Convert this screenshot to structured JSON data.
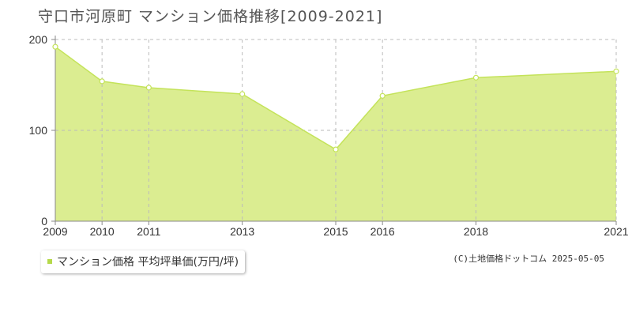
{
  "title": "守口市河原町 マンション価格推移[2009-2021]",
  "legend_label": "マンション価格 平均坪単価(万円/坪)",
  "credit": "(C)土地価格ドットコム 2025-05-05",
  "colors": {
    "fill": "#dbed91",
    "line": "#c4e35a",
    "swatch": "#b5d94a"
  },
  "chart_data": {
    "type": "area",
    "x": [
      2009,
      2010,
      2011,
      2013,
      2015,
      2016,
      2018,
      2021
    ],
    "series": [
      {
        "name": "マンション価格 平均坪単価(万円/坪)",
        "values": [
          192,
          154,
          147,
          140,
          79,
          138,
          158,
          165
        ]
      }
    ],
    "xticks": [
      "2009",
      "2010",
      "2011",
      "2013",
      "2015",
      "2016",
      "2018",
      "2021"
    ],
    "yticks": [
      0,
      100,
      200
    ],
    "ylim": [
      0,
      200
    ],
    "grid": true,
    "legend_position": "bottom-left"
  }
}
